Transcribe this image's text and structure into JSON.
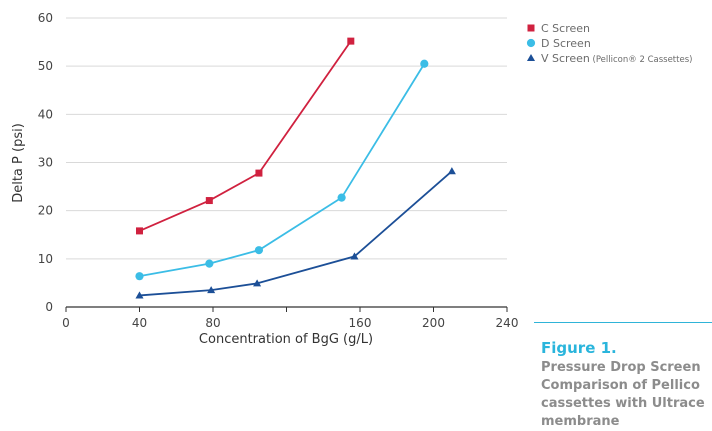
{
  "chart_data": {
    "type": "line",
    "title": "",
    "xlabel": "Concentration of BgG (g/L)",
    "ylabel": "Delta P (psi)",
    "xlim": [
      0,
      240
    ],
    "ylim": [
      0,
      60
    ],
    "xticks": [
      0,
      40,
      80,
      160,
      200,
      240
    ],
    "yticks": [
      0,
      10,
      20,
      30,
      40,
      50,
      60
    ],
    "grid": "horizontal",
    "legend_position": "top-right",
    "series": [
      {
        "name": "C Screen",
        "note": "",
        "marker": "square",
        "color": "#d0213f",
        "x": [
          40,
          78,
          105,
          155
        ],
        "y": [
          15.8,
          22.1,
          27.8,
          55.2
        ]
      },
      {
        "name": "D Screen",
        "note": "",
        "marker": "circle",
        "color": "#3bbde6",
        "x": [
          40,
          78,
          105,
          150,
          195
        ],
        "y": [
          6.4,
          9.0,
          11.8,
          22.7,
          50.5
        ]
      },
      {
        "name": "V Screen",
        "note": "(Pellicon® 2 Cassettes)",
        "marker": "triangle",
        "color": "#1c4f97",
        "x": [
          40,
          79,
          104,
          157,
          210
        ],
        "y": [
          2.4,
          3.5,
          4.9,
          10.5,
          28.2
        ]
      }
    ]
  },
  "figure": {
    "label": "Figure 1.",
    "caption_lines": [
      "Pressure Drop Screen",
      "Comparison of Pellico",
      "cassettes with Ultrace",
      "membrane"
    ]
  }
}
